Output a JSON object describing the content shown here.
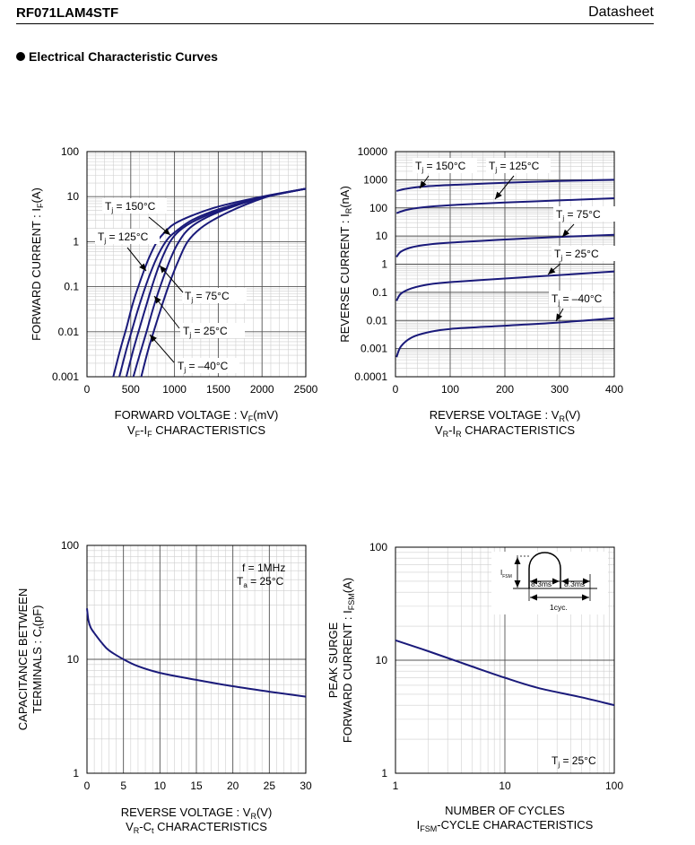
{
  "header": {
    "part_number": "RF071LAM4STF",
    "doc_type": "Datasheet"
  },
  "section_title": "Electrical Characteristic Curves",
  "curve_color": "#1a1a7a",
  "chart_data": [
    {
      "id": "vf-if",
      "type": "line",
      "title": "VF-IF CHARACTERISTICS",
      "caption_parts": [
        "V",
        "F",
        "-I",
        "F",
        " CHARACTERISTICS"
      ],
      "xlabel_parts": [
        "FORWARD VOLTAGE : V",
        "F",
        "(mV)"
      ],
      "ylabel_parts": [
        "FORWARD CURRENT : I",
        "F",
        "(A)"
      ],
      "x_scale": "linear",
      "y_scale": "log",
      "xlim": [
        0,
        2500
      ],
      "ylim": [
        0.001,
        100
      ],
      "x_ticks": [
        0,
        500,
        1000,
        1500,
        2000,
        2500
      ],
      "x_tick_labels": [
        "0",
        "500",
        "1000",
        "1500",
        "2000",
        "2500"
      ],
      "y_ticks": [
        0.001,
        0.01,
        0.1,
        1,
        10,
        100
      ],
      "y_tick_labels": [
        "0.001",
        "0.01",
        "0.1",
        "1",
        "10",
        "100"
      ],
      "series": [
        {
          "name": "Tj = 150°C",
          "x": [
            300,
            380,
            450,
            520,
            600,
            700,
            800,
            900,
            1000,
            1200,
            1500,
            2000,
            2500
          ],
          "y": [
            0.001,
            0.004,
            0.012,
            0.04,
            0.12,
            0.4,
            1.0,
            1.7,
            2.5,
            3.8,
            6.0,
            10.0,
            15.0
          ]
        },
        {
          "name": "Tj = 125°C",
          "x": [
            370,
            450,
            520,
            600,
            700,
            800,
            900,
            1000,
            1200,
            1500,
            2000,
            2500
          ],
          "y": [
            0.001,
            0.004,
            0.012,
            0.04,
            0.15,
            0.45,
            1.0,
            1.6,
            3.0,
            5.2,
            9.6,
            15.0
          ]
        },
        {
          "name": "Tj = 75°C",
          "x": [
            450,
            530,
            600,
            680,
            760,
            850,
            950,
            1050,
            1200,
            1500,
            2000,
            2500
          ],
          "y": [
            0.001,
            0.004,
            0.012,
            0.04,
            0.13,
            0.4,
            1.0,
            1.7,
            2.7,
            4.8,
            9.4,
            15.0
          ]
        },
        {
          "name": "Tj = 25°C",
          "x": [
            530,
            600,
            680,
            760,
            850,
            950,
            1050,
            1200,
            1500,
            2000,
            2500
          ],
          "y": [
            0.001,
            0.003,
            0.01,
            0.035,
            0.12,
            0.4,
            1.0,
            2.2,
            4.5,
            9.5,
            15.0
          ]
        },
        {
          "name": "Tj = –40°C",
          "x": [
            620,
            700,
            780,
            860,
            950,
            1050,
            1150,
            1300,
            1500,
            1800,
            2100,
            2500
          ],
          "y": [
            0.001,
            0.004,
            0.013,
            0.04,
            0.13,
            0.4,
            1.0,
            2.0,
            3.5,
            6.5,
            10.5,
            15.0
          ]
        }
      ],
      "annotations": [
        {
          "subject": "T",
          "sub": "j",
          "rest": " = 150°C"
        },
        {
          "subject": "T",
          "sub": "j",
          "rest": " = 125°C"
        },
        {
          "subject": "T",
          "sub": "j",
          "rest": " = 75°C"
        },
        {
          "subject": "T",
          "sub": "j",
          "rest": " = 25°C"
        },
        {
          "subject": "T",
          "sub": "j",
          "rest": " = –40°C"
        }
      ]
    },
    {
      "id": "vr-ir",
      "type": "line",
      "title": "VR-IR CHARACTERISTICS",
      "caption_parts": [
        "V",
        "R",
        "-I",
        "R",
        " CHARACTERISTICS"
      ],
      "xlabel_parts": [
        "REVERSE VOLTAGE : V",
        "R",
        "(V)"
      ],
      "ylabel_parts": [
        "REVERSE CURRENT : I",
        "R",
        "(nA)"
      ],
      "x_scale": "linear",
      "y_scale": "log",
      "xlim": [
        0,
        400
      ],
      "ylim": [
        0.0001,
        10000
      ],
      "x_ticks": [
        0,
        100,
        200,
        300,
        400
      ],
      "x_tick_labels": [
        "0",
        "100",
        "200",
        "300",
        "400"
      ],
      "y_ticks": [
        0.0001,
        0.001,
        0.01,
        0.1,
        1,
        10,
        100,
        1000,
        10000
      ],
      "y_tick_labels": [
        "0.0001",
        "0.001",
        "0.01",
        "0.1",
        "1",
        "10",
        "100",
        "1000",
        "10000"
      ],
      "series": [
        {
          "name": "Tj = 150°C",
          "x": [
            2,
            20,
            50,
            100,
            200,
            300,
            400
          ],
          "y": [
            400,
            480,
            570,
            650,
            780,
            900,
            1000
          ]
        },
        {
          "name": "Tj = 125°C",
          "x": [
            2,
            20,
            50,
            100,
            200,
            300,
            400
          ],
          "y": [
            65,
            85,
            105,
            125,
            155,
            185,
            220
          ]
        },
        {
          "name": "Tj = 75°C",
          "x": [
            2,
            10,
            30,
            60,
            100,
            200,
            300,
            400
          ],
          "y": [
            1.8,
            2.8,
            4.0,
            5.0,
            5.8,
            7.5,
            9.3,
            11.0
          ]
        },
        {
          "name": "Tj = 25°C",
          "x": [
            2,
            10,
            30,
            60,
            100,
            200,
            300,
            400
          ],
          "y": [
            0.05,
            0.09,
            0.14,
            0.19,
            0.23,
            0.31,
            0.41,
            0.55
          ]
        },
        {
          "name": "Tj = –40°C",
          "x": [
            2,
            10,
            30,
            60,
            100,
            200,
            300,
            400
          ],
          "y": [
            0.0005,
            0.0012,
            0.0025,
            0.0038,
            0.005,
            0.0065,
            0.0085,
            0.012
          ]
        }
      ],
      "annotations": [
        {
          "subject": "T",
          "sub": "j",
          "rest": " = 150°C"
        },
        {
          "subject": "T",
          "sub": "j",
          "rest": " = 125°C"
        },
        {
          "subject": "T",
          "sub": "j",
          "rest": " = 75°C"
        },
        {
          "subject": "T",
          "sub": "j",
          "rest": " = 25°C"
        },
        {
          "subject": "T",
          "sub": "j",
          "rest": " = –40°C"
        }
      ]
    },
    {
      "id": "vr-ct",
      "type": "line",
      "title": "VR-Ct CHARACTERISTICS",
      "caption_parts": [
        "V",
        "R",
        "-C",
        "t",
        " CHARACTERISTICS"
      ],
      "xlabel_parts": [
        "REVERSE VOLTAGE : V",
        "R",
        "(V)"
      ],
      "ylabel_lines": [
        "CAPACITANCE BETWEEN"
      ],
      "ylabel_parts": [
        "TERMINALS : C",
        "t",
        "(pF)"
      ],
      "x_scale": "linear",
      "y_scale": "log",
      "xlim": [
        0,
        30
      ],
      "ylim": [
        1,
        100
      ],
      "x_ticks": [
        0,
        5,
        10,
        15,
        20,
        25,
        30
      ],
      "x_tick_labels": [
        "0",
        "5",
        "10",
        "15",
        "20",
        "25",
        "30"
      ],
      "y_ticks": [
        1,
        10,
        100
      ],
      "y_tick_labels": [
        "1",
        "10",
        "100"
      ],
      "series": [
        {
          "name": "Ct",
          "x": [
            0,
            0.2,
            0.5,
            1,
            2,
            3,
            5,
            7,
            10,
            15,
            20,
            25,
            30
          ],
          "y": [
            28,
            22,
            19,
            17,
            14,
            12,
            10,
            8.7,
            7.6,
            6.6,
            5.8,
            5.2,
            4.7
          ]
        }
      ],
      "annotations": [
        {
          "text": "f = 1MHz"
        },
        {
          "subject": "T",
          "sub": "a",
          "rest": " = 25°C"
        }
      ]
    },
    {
      "id": "ifsm-cycle",
      "type": "line",
      "title": "IFSM-CYCLE CHARACTERISTICS",
      "caption_parts": [
        "I",
        "FSM",
        "-CYCLE CHARACTERISTICS"
      ],
      "xlabel": "NUMBER OF CYCLES",
      "ylabel_lines": [
        "PEAK SURGE"
      ],
      "ylabel_parts": [
        "FORWARD CURRENT : I",
        "FSM",
        "(A)"
      ],
      "x_scale": "log",
      "y_scale": "log",
      "xlim": [
        1,
        100
      ],
      "ylim": [
        1,
        100
      ],
      "x_ticks": [
        1,
        10,
        100
      ],
      "x_tick_labels": [
        "1",
        "10",
        "100"
      ],
      "y_ticks": [
        1,
        10,
        100
      ],
      "y_tick_labels": [
        "1",
        "10",
        "100"
      ],
      "series": [
        {
          "name": "IFSM",
          "x": [
            1,
            2,
            5,
            10,
            20,
            50,
            100
          ],
          "y": [
            15,
            12,
            8.8,
            7.0,
            5.7,
            4.7,
            4.0
          ]
        }
      ],
      "annotations": [
        {
          "subject": "T",
          "sub": "j",
          "rest": " = 25°C"
        }
      ],
      "inset": {
        "ifsm_parts": [
          "I",
          "FSM"
        ],
        "half_period": "8.3ms",
        "cycle": "1cyc."
      }
    }
  ]
}
